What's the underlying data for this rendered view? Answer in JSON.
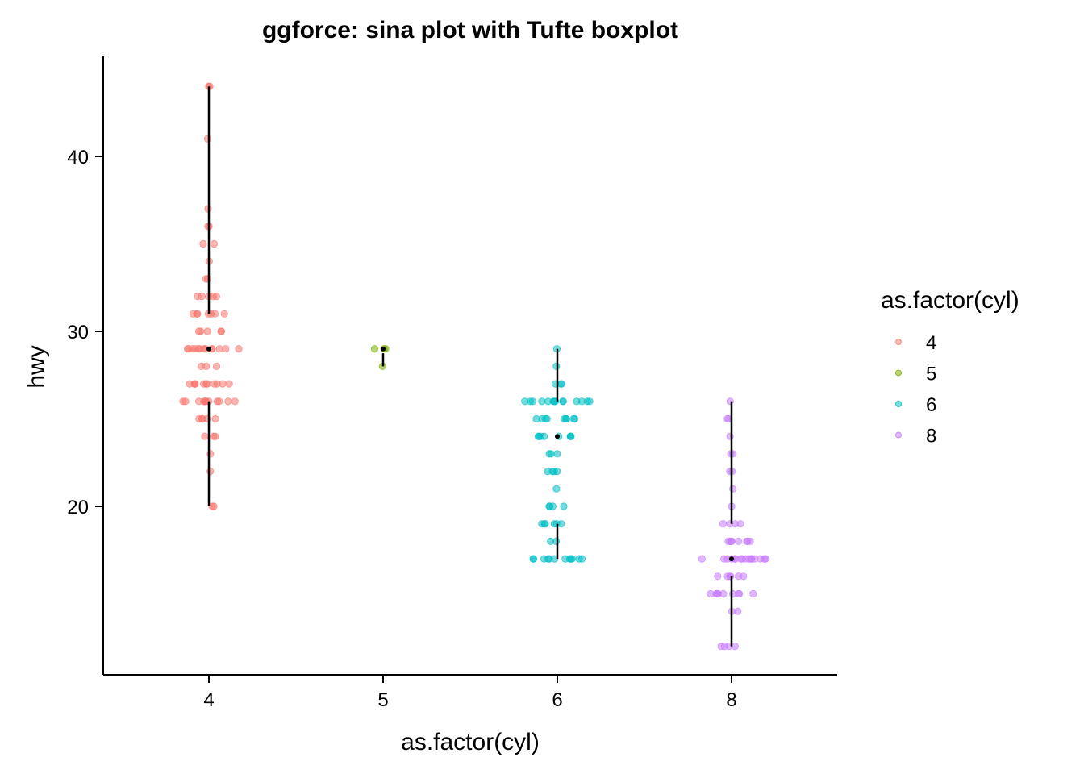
{
  "chart_data": {
    "type": "scatter",
    "title": "ggforce: sina plot with Tufte boxplot",
    "xlabel": "as.factor(cyl)",
    "ylabel": "hwy",
    "categories": [
      "4",
      "5",
      "6",
      "8"
    ],
    "ylim": [
      11,
      46
    ],
    "yticks": [
      "20",
      "30",
      "40"
    ],
    "grid": false,
    "legend": {
      "title": "as.factor(cyl)",
      "position": "right"
    },
    "point_alpha": 0.55,
    "series": [
      {
        "name": "4",
        "color": "#F8766D",
        "values": [
          44,
          44,
          41,
          37,
          36,
          36,
          35,
          35,
          34,
          33,
          33,
          32,
          32,
          32,
          32,
          32,
          31,
          31,
          31,
          31,
          31,
          31,
          31,
          30,
          30,
          30,
          30,
          30,
          29,
          29,
          29,
          29,
          29,
          29,
          29,
          29,
          29,
          29,
          29,
          29,
          29,
          28,
          28,
          28,
          27,
          27,
          27,
          27,
          27,
          27,
          27,
          27,
          27,
          27,
          27,
          26,
          26,
          26,
          26,
          26,
          26,
          26,
          26,
          26,
          26,
          26,
          26,
          25,
          25,
          25,
          25,
          25,
          24,
          24,
          24,
          23,
          22,
          20,
          20
        ],
        "box": {
          "min": 20,
          "q1": 26,
          "median": 29,
          "q3": 31,
          "max": 44
        }
      },
      {
        "name": "5",
        "color": "#7CAE00",
        "values": [
          29,
          29,
          29,
          28
        ],
        "box": {
          "min": 28,
          "q1": 28.75,
          "median": 29,
          "q3": 29,
          "max": 29
        }
      },
      {
        "name": "6",
        "color": "#00BFC4",
        "values": [
          29,
          28,
          27,
          27,
          27,
          26,
          26,
          26,
          26,
          26,
          26,
          26,
          26,
          26,
          26,
          26,
          26,
          26,
          26,
          25,
          25,
          25,
          25,
          25,
          25,
          25,
          25,
          25,
          24,
          24,
          24,
          24,
          24,
          24,
          24,
          24,
          23,
          23,
          23,
          22,
          22,
          22,
          22,
          21,
          20,
          20,
          20,
          20,
          19,
          19,
          19,
          19,
          19,
          19,
          18,
          18,
          17,
          17,
          17,
          17,
          17,
          17,
          17,
          17,
          17,
          17,
          17,
          17
        ],
        "box": {
          "min": 17,
          "q1": 19,
          "median": 24,
          "q3": 26,
          "max": 29
        }
      },
      {
        "name": "8",
        "color": "#C77CFF",
        "values": [
          26,
          25,
          25,
          24,
          23,
          23,
          22,
          22,
          21,
          20,
          19,
          19,
          19,
          19,
          18,
          18,
          18,
          18,
          18,
          18,
          18,
          18,
          17,
          17,
          17,
          17,
          17,
          17,
          17,
          17,
          17,
          17,
          17,
          17,
          17,
          17,
          17,
          17,
          16,
          16,
          16,
          16,
          16,
          16,
          15,
          15,
          15,
          15,
          15,
          15,
          15,
          15,
          15,
          14,
          14,
          12,
          12,
          12,
          12
        ],
        "box": {
          "min": 12,
          "q1": 16,
          "median": 17,
          "q3": 19,
          "max": 26
        }
      }
    ]
  }
}
